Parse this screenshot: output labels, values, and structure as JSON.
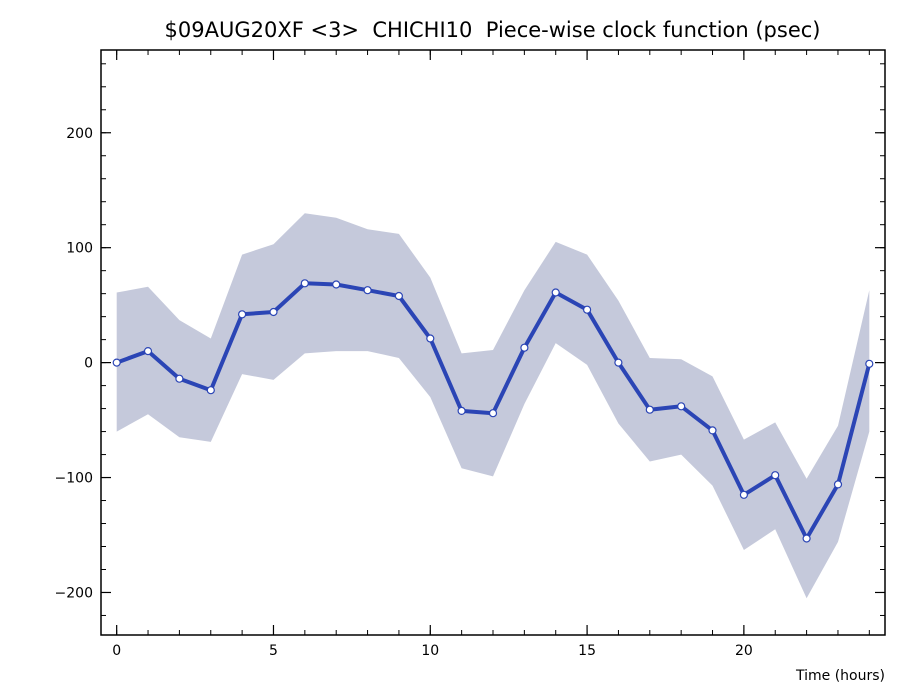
{
  "chart_data": {
    "type": "line",
    "title": "$09AUG20XF <3>  CHICHI10  Piece-wise clock function (psec)",
    "xlabel": "Time (hours)",
    "ylabel": "",
    "xlim": [
      -0.5,
      24.5
    ],
    "ylim": [
      -237,
      272
    ],
    "x_ticks": [
      0,
      5,
      10,
      15,
      20
    ],
    "y_ticks": [
      -200,
      -100,
      0,
      100,
      200
    ],
    "x_minor_step": 1,
    "y_minor_step": 20,
    "grid": false,
    "series": [
      {
        "values": [
          {
            "x": 0,
            "y": 0
          },
          {
            "x": 1,
            "y": 10
          },
          {
            "x": 2,
            "y": -14
          },
          {
            "x": 3,
            "y": -24
          },
          {
            "x": 4,
            "y": 42
          },
          {
            "x": 5,
            "y": 44
          },
          {
            "x": 6,
            "y": 69
          },
          {
            "x": 7,
            "y": 68
          },
          {
            "x": 8,
            "y": 63
          },
          {
            "x": 9,
            "y": 58
          },
          {
            "x": 10,
            "y": 21
          },
          {
            "x": 11,
            "y": -42
          },
          {
            "x": 12,
            "y": -44
          },
          {
            "x": 13,
            "y": 13
          },
          {
            "x": 14,
            "y": 61
          },
          {
            "x": 15,
            "y": 46
          },
          {
            "x": 16,
            "y": 0
          },
          {
            "x": 17,
            "y": -41
          },
          {
            "x": 18,
            "y": -38
          },
          {
            "x": 19,
            "y": -59
          },
          {
            "x": 20,
            "y": -115
          },
          {
            "x": 21,
            "y": -98
          },
          {
            "x": 22,
            "y": -153
          },
          {
            "x": 23,
            "y": -106
          },
          {
            "x": 24,
            "y": -1
          }
        ],
        "upper": [
          61,
          66,
          37,
          21,
          94,
          103,
          130,
          126,
          116,
          112,
          74,
          8,
          11,
          63,
          105,
          94,
          54,
          4,
          3,
          -12,
          -67,
          -52,
          -101,
          -55,
          63
        ],
        "lower": [
          -60,
          -45,
          -65,
          -69,
          -10,
          -15,
          8,
          10,
          10,
          4,
          -30,
          -92,
          -99,
          -36,
          17,
          -2,
          -53,
          -86,
          -80,
          -107,
          -163,
          -145,
          -205,
          -156,
          -60
        ],
        "line_color": "#2b45b5",
        "band_color": "#c5c9db",
        "marker_fill": "#ffffff"
      }
    ]
  }
}
